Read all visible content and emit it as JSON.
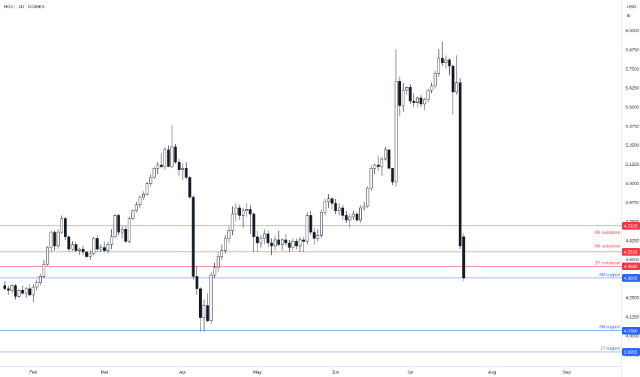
{
  "header": {
    "symbol": "HG1! · 1D · COMEX",
    "currency": "USD",
    "unit": "lb"
  },
  "chart_data": {
    "type": "candlestick",
    "ylim": [
      3.87,
      6.07
    ],
    "y_ticks": [
      "6.0000",
      "5.8750",
      "5.7500",
      "5.6250",
      "5.5000",
      "5.3750",
      "5.2500",
      "5.1250",
      "5.0000",
      "4.8750",
      "4.7500",
      "4.6250",
      "4.5000",
      "4.3750",
      "4.2500",
      "4.1250",
      "4.0000",
      "3.8750"
    ],
    "y_tick_values": [
      6.0,
      5.875,
      5.75,
      5.625,
      5.5,
      5.375,
      5.25,
      5.125,
      5.0,
      4.875,
      4.75,
      4.625,
      4.5,
      4.375,
      4.25,
      4.125,
      4.0,
      3.875
    ],
    "x_labels": [
      {
        "label": "Feb",
        "index": 8
      },
      {
        "label": "Mar",
        "index": 28
      },
      {
        "label": "Apr",
        "index": 50
      },
      {
        "label": "May",
        "index": 71
      },
      {
        "label": "Jun",
        "index": 93
      },
      {
        "label": "Jul",
        "index": 114
      },
      {
        "label": "Aug",
        "index": 137
      },
      {
        "label": "Sep",
        "index": 158
      }
    ],
    "levels": [
      {
        "value": 4.7225,
        "tag": "4.7225",
        "label": "3M resistance",
        "color": "#f23645",
        "label_value": 4.68
      },
      {
        "value": 4.5515,
        "tag": "4.5515",
        "label": "3M resistance",
        "color": "#f23645",
        "label_value": 4.59
      },
      {
        "value": 4.459,
        "tag": "4.4590",
        "label": "1Y resistance",
        "color": "#f23645",
        "label_value": 4.48
      },
      {
        "value": 4.3805,
        "tag": "4.3805",
        "label": "6M support",
        "color": "#2962ff",
        "label_value": 4.4
      },
      {
        "value": 4.038,
        "tag": "4.0380",
        "label": "6M support",
        "color": "#2962ff",
        "label_value": 4.06
      },
      {
        "value": 3.8955,
        "tag": "3.8955",
        "label": "1Y support",
        "color": "#2962ff",
        "label_value": 3.92
      }
    ],
    "candles": [
      [
        4.33,
        4.36,
        4.3,
        4.31
      ],
      [
        4.31,
        4.33,
        4.27,
        4.3
      ],
      [
        4.3,
        4.34,
        4.28,
        4.33
      ],
      [
        4.33,
        4.34,
        4.24,
        4.26
      ],
      [
        4.26,
        4.31,
        4.25,
        4.3
      ],
      [
        4.3,
        4.33,
        4.27,
        4.28
      ],
      [
        4.28,
        4.32,
        4.25,
        4.31
      ],
      [
        4.31,
        4.34,
        4.26,
        4.27
      ],
      [
        4.27,
        4.34,
        4.22,
        4.32
      ],
      [
        4.32,
        4.37,
        4.3,
        4.35
      ],
      [
        4.35,
        4.41,
        4.33,
        4.39
      ],
      [
        4.39,
        4.5,
        4.38,
        4.47
      ],
      [
        4.47,
        4.59,
        4.46,
        4.58
      ],
      [
        4.58,
        4.69,
        4.55,
        4.68
      ],
      [
        4.68,
        4.69,
        4.56,
        4.59
      ],
      [
        4.59,
        4.7,
        4.57,
        4.68
      ],
      [
        4.68,
        4.79,
        4.67,
        4.77
      ],
      [
        4.77,
        4.78,
        4.63,
        4.65
      ],
      [
        4.65,
        4.66,
        4.55,
        4.57
      ],
      [
        4.57,
        4.62,
        4.56,
        4.6
      ],
      [
        4.6,
        4.62,
        4.55,
        4.56
      ],
      [
        4.56,
        4.58,
        4.53,
        4.57
      ],
      [
        4.57,
        4.59,
        4.53,
        4.55
      ],
      [
        4.55,
        4.56,
        4.51,
        4.52
      ],
      [
        4.52,
        4.56,
        4.5,
        4.54
      ],
      [
        4.54,
        4.65,
        4.53,
        4.64
      ],
      [
        4.64,
        4.66,
        4.55,
        4.57
      ],
      [
        4.57,
        4.6,
        4.55,
        4.58
      ],
      [
        4.58,
        4.62,
        4.55,
        4.56
      ],
      [
        4.56,
        4.62,
        4.54,
        4.6
      ],
      [
        4.6,
        4.7,
        4.57,
        4.65
      ],
      [
        4.65,
        4.8,
        4.64,
        4.79
      ],
      [
        4.79,
        4.8,
        4.66,
        4.68
      ],
      [
        4.68,
        4.72,
        4.64,
        4.7
      ],
      [
        4.7,
        4.72,
        4.61,
        4.62
      ],
      [
        4.62,
        4.78,
        4.61,
        4.77
      ],
      [
        4.77,
        4.83,
        4.76,
        4.82
      ],
      [
        4.82,
        4.88,
        4.81,
        4.86
      ],
      [
        4.86,
        4.92,
        4.84,
        4.91
      ],
      [
        4.91,
        4.95,
        4.89,
        4.93
      ],
      [
        4.93,
        5.01,
        4.92,
        5.0
      ],
      [
        5.0,
        5.06,
        4.98,
        5.04
      ],
      [
        5.04,
        5.11,
        5.03,
        5.1
      ],
      [
        5.1,
        5.14,
        5.06,
        5.12
      ],
      [
        5.12,
        5.2,
        5.1,
        5.11
      ],
      [
        5.11,
        5.24,
        5.09,
        5.22
      ],
      [
        5.22,
        5.25,
        5.11,
        5.11
      ],
      [
        5.11,
        5.38,
        5.1,
        5.24
      ],
      [
        5.24,
        5.26,
        5.13,
        5.14
      ],
      [
        5.14,
        5.16,
        5.05,
        5.09
      ],
      [
        5.09,
        5.13,
        5.02,
        5.1
      ],
      [
        5.1,
        5.14,
        5.03,
        5.04
      ],
      [
        5.04,
        5.05,
        4.9,
        4.91
      ],
      [
        4.91,
        4.92,
        4.37,
        4.39
      ],
      [
        4.39,
        4.46,
        4.27,
        4.31
      ],
      [
        4.31,
        4.32,
        4.03,
        4.12
      ],
      [
        4.12,
        4.24,
        4.03,
        4.2
      ],
      [
        4.2,
        4.28,
        4.09,
        4.1
      ],
      [
        4.1,
        4.42,
        4.08,
        4.4
      ],
      [
        4.4,
        4.48,
        4.38,
        4.45
      ],
      [
        4.45,
        4.55,
        4.42,
        4.52
      ],
      [
        4.52,
        4.6,
        4.5,
        4.56
      ],
      [
        4.56,
        4.66,
        4.54,
        4.64
      ],
      [
        4.64,
        4.72,
        4.61,
        4.69
      ],
      [
        4.69,
        4.85,
        4.66,
        4.8
      ],
      [
        4.8,
        4.87,
        4.75,
        4.84
      ],
      [
        4.84,
        4.86,
        4.76,
        4.79
      ],
      [
        4.79,
        4.84,
        4.71,
        4.82
      ],
      [
        4.82,
        4.87,
        4.78,
        4.83
      ],
      [
        4.83,
        4.86,
        4.67,
        4.8
      ],
      [
        4.8,
        4.81,
        4.55,
        4.65
      ],
      [
        4.65,
        4.69,
        4.55,
        4.61
      ],
      [
        4.61,
        4.66,
        4.58,
        4.64
      ],
      [
        4.64,
        4.7,
        4.6,
        4.67
      ],
      [
        4.67,
        4.69,
        4.58,
        4.61
      ],
      [
        4.61,
        4.64,
        4.53,
        4.59
      ],
      [
        4.59,
        4.66,
        4.56,
        4.63
      ],
      [
        4.63,
        4.69,
        4.59,
        4.6
      ],
      [
        4.6,
        4.64,
        4.56,
        4.63
      ],
      [
        4.63,
        4.67,
        4.59,
        4.61
      ],
      [
        4.61,
        4.63,
        4.55,
        4.58
      ],
      [
        4.58,
        4.64,
        4.56,
        4.62
      ],
      [
        4.62,
        4.64,
        4.57,
        4.59
      ],
      [
        4.59,
        4.65,
        4.55,
        4.63
      ],
      [
        4.63,
        4.65,
        4.55,
        4.62
      ],
      [
        4.62,
        4.81,
        4.6,
        4.79
      ],
      [
        4.79,
        4.82,
        4.66,
        4.68
      ],
      [
        4.68,
        4.71,
        4.6,
        4.64
      ],
      [
        4.64,
        4.7,
        4.62,
        4.66
      ],
      [
        4.66,
        4.83,
        4.64,
        4.81
      ],
      [
        4.81,
        4.9,
        4.79,
        4.88
      ],
      [
        4.88,
        4.93,
        4.84,
        4.9
      ],
      [
        4.9,
        4.91,
        4.83,
        4.87
      ],
      [
        4.87,
        4.9,
        4.8,
        4.82
      ],
      [
        4.82,
        4.87,
        4.79,
        4.84
      ],
      [
        4.84,
        4.86,
        4.76,
        4.79
      ],
      [
        4.79,
        4.82,
        4.74,
        4.76
      ],
      [
        4.76,
        4.8,
        4.71,
        4.78
      ],
      [
        4.78,
        4.82,
        4.76,
        4.8
      ],
      [
        4.8,
        4.81,
        4.75,
        4.76
      ],
      [
        4.76,
        4.86,
        4.74,
        4.84
      ],
      [
        4.84,
        4.88,
        4.82,
        4.85
      ],
      [
        4.85,
        4.98,
        4.84,
        4.97
      ],
      [
        4.97,
        5.12,
        4.95,
        5.1
      ],
      [
        5.1,
        5.13,
        5.06,
        5.12
      ],
      [
        5.12,
        5.18,
        5.08,
        5.11
      ],
      [
        5.11,
        5.17,
        5.05,
        5.16
      ],
      [
        5.16,
        5.24,
        5.15,
        5.22
      ],
      [
        5.22,
        5.2,
        5.09,
        5.1
      ],
      [
        5.1,
        5.1,
        4.99,
        5.01
      ],
      [
        5.01,
        5.88,
        4.98,
        5.67
      ],
      [
        5.67,
        5.7,
        5.44,
        5.51
      ],
      [
        5.51,
        5.66,
        5.47,
        5.61
      ],
      [
        5.61,
        5.64,
        5.58,
        5.63
      ],
      [
        5.63,
        5.65,
        5.52,
        5.54
      ],
      [
        5.54,
        5.59,
        5.5,
        5.53
      ],
      [
        5.53,
        5.57,
        5.5,
        5.56
      ],
      [
        5.56,
        5.58,
        5.5,
        5.52
      ],
      [
        5.52,
        5.56,
        5.48,
        5.55
      ],
      [
        5.55,
        5.62,
        5.53,
        5.61
      ],
      [
        5.61,
        5.66,
        5.59,
        5.64
      ],
      [
        5.64,
        5.74,
        5.62,
        5.72
      ],
      [
        5.72,
        5.88,
        5.7,
        5.82
      ],
      [
        5.82,
        5.93,
        5.77,
        5.79
      ],
      [
        5.79,
        5.84,
        5.75,
        5.81
      ],
      [
        5.81,
        5.82,
        5.71,
        5.77
      ],
      [
        5.77,
        5.78,
        5.45,
        5.6
      ],
      [
        5.6,
        5.84,
        5.58,
        5.66
      ],
      [
        5.66,
        5.69,
        4.57,
        4.59
      ],
      [
        4.65,
        4.67,
        4.36,
        4.38
      ]
    ]
  }
}
